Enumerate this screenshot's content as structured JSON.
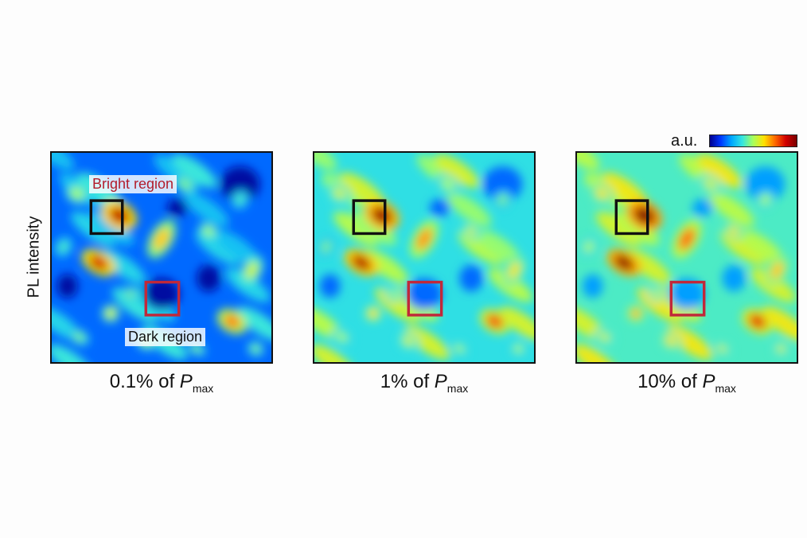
{
  "chart_data": {
    "type": "heatmap",
    "ylabel": "PL intensity",
    "colorbar": {
      "label": "a.u.",
      "colors": [
        "#00008f",
        "#0037ff",
        "#00a8ff",
        "#35e6e0",
        "#a8ff5a",
        "#ffe100",
        "#ff6a00",
        "#d20000",
        "#7a0000"
      ]
    },
    "annotations": {
      "bright_region": "Bright region",
      "dark_region": "Dark region",
      "bright_box_color": "#111111",
      "dark_box_color": "#c0283a"
    },
    "panels": [
      {
        "caption_prefix": "0.1% of ",
        "caption_symbol": "P",
        "caption_subscript": "max",
        "background_level": 0.18
      },
      {
        "caption_prefix": "1% of ",
        "caption_symbol": "P",
        "caption_subscript": "max",
        "background_level": 0.36
      },
      {
        "caption_prefix": "10% of ",
        "caption_symbol": "P",
        "caption_subscript": "max",
        "background_level": 0.4
      }
    ]
  }
}
